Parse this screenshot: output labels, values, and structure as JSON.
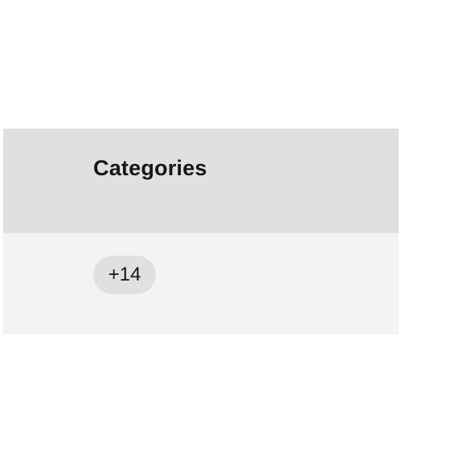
{
  "table": {
    "header": {
      "categories_label": "Categories"
    },
    "rows": [
      {
        "categories_overflow_tag": "+14"
      }
    ]
  },
  "colors": {
    "header_bg": "#e0e0e0",
    "row_bg": "#f3f3f3",
    "tag_bg": "#e0e0e0",
    "text": "#161616",
    "page_bg": "#ffffff"
  }
}
